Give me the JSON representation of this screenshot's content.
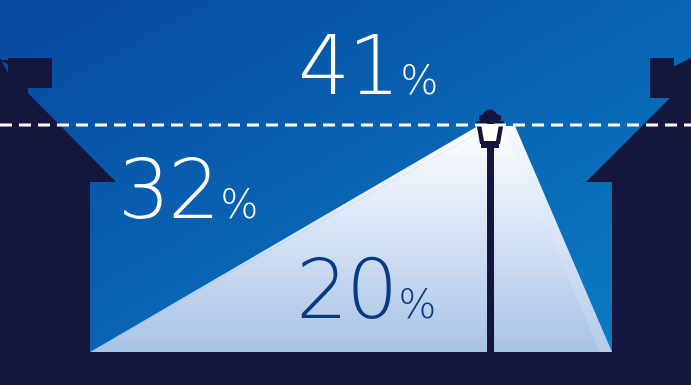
{
  "stats": {
    "top": {
      "value": "41",
      "unit": "%"
    },
    "left": {
      "value": "32",
      "unit": "%"
    },
    "bottom": {
      "value": "20",
      "unit": "%"
    }
  },
  "colors": {
    "sky_top": "#08489f",
    "sky_bottom": "#0a80c6",
    "silhouette": "#15163d",
    "light_top": "#ffffff",
    "light_bottom": "#a9c3e6",
    "dashed_line": "#ffffff",
    "dark_number": "#0b3a84",
    "light_number": "#ffffff"
  },
  "icons": {
    "left_house": "house-silhouette-icon",
    "right_house": "house-silhouette-icon",
    "street_lamp": "street-lamp-icon"
  }
}
